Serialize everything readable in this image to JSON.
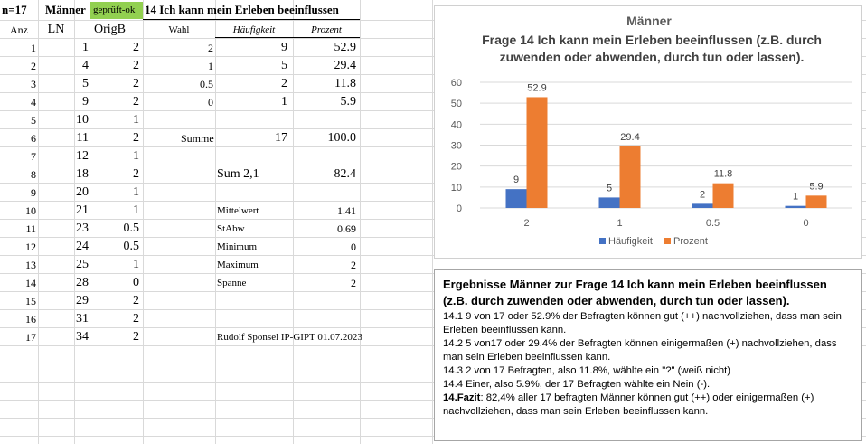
{
  "sheet": {
    "row1": {
      "n": "n=17",
      "maenner": "Männer",
      "gepr": "geprüft-ok",
      "title": "14 Ich kann mein Erleben beeinflussen"
    },
    "headers": {
      "anz": "Anz",
      "ln": "LN",
      "origb": "OrigB",
      "wahl": "Wahl",
      "haeuf": "Häufigkeit",
      "proz": "Prozent"
    },
    "rows": [
      {
        "anz": "1",
        "ln": "1",
        "origb": "2"
      },
      {
        "anz": "2",
        "ln": "4",
        "origb": "2"
      },
      {
        "anz": "3",
        "ln": "5",
        "origb": "2"
      },
      {
        "anz": "4",
        "ln": "9",
        "origb": "2"
      },
      {
        "anz": "5",
        "ln": "10",
        "origb": "1"
      },
      {
        "anz": "6",
        "ln": "11",
        "origb": "2"
      },
      {
        "anz": "7",
        "ln": "12",
        "origb": "1"
      },
      {
        "anz": "8",
        "ln": "18",
        "origb": "2"
      },
      {
        "anz": "9",
        "ln": "20",
        "origb": "1"
      },
      {
        "anz": "10",
        "ln": "21",
        "origb": "1"
      },
      {
        "anz": "11",
        "ln": "23",
        "origb": "0.5"
      },
      {
        "anz": "12",
        "ln": "24",
        "origb": "0.5"
      },
      {
        "anz": "13",
        "ln": "25",
        "origb": "1"
      },
      {
        "anz": "14",
        "ln": "28",
        "origb": "0"
      },
      {
        "anz": "15",
        "ln": "29",
        "origb": "2"
      },
      {
        "anz": "16",
        "ln": "31",
        "origb": "2"
      },
      {
        "anz": "17",
        "ln": "34",
        "origb": "2"
      }
    ],
    "freq": [
      {
        "wahl": "2",
        "h": "9",
        "p": "52.9"
      },
      {
        "wahl": "1",
        "h": "5",
        "p": "29.4"
      },
      {
        "wahl": "0.5",
        "h": "2",
        "p": "11.8"
      },
      {
        "wahl": "0",
        "h": "1",
        "p": "5.9"
      }
    ],
    "summe": {
      "label": "Summe",
      "h": "17",
      "p": "100.0"
    },
    "sum21": {
      "label": "Sum 2,1",
      "p": "82.4"
    },
    "stats": [
      {
        "label": "Mittelwert",
        "value": "1.41"
      },
      {
        "label": "StAbw",
        "value": "0.69"
      },
      {
        "label": "Minimum",
        "value": "0"
      },
      {
        "label": "Maximum",
        "value": "2"
      },
      {
        "label": "Spanne",
        "value": "2"
      }
    ],
    "credit": "Rudolf Sponsel IP-GIPT 01.07.2023"
  },
  "chart_data": {
    "type": "bar",
    "title": "Männer",
    "subtitle": "Frage 14 Ich kann mein Erleben beeinflussen (z.B. durch zuwenden oder abwenden, durch tun oder lassen).",
    "categories": [
      "2",
      "1",
      "0.5",
      "0"
    ],
    "series": [
      {
        "name": "Häufigkeit",
        "values": [
          9,
          5,
          2,
          1
        ],
        "color": "#4472c4"
      },
      {
        "name": "Prozent",
        "values": [
          52.9,
          29.4,
          11.8,
          5.9
        ],
        "color": "#ed7d31"
      }
    ],
    "data_labels": [
      [
        "9",
        "5",
        "2",
        "1"
      ],
      [
        "52.9",
        "29.4",
        "11.8",
        "5.9"
      ]
    ],
    "ylim": [
      0,
      60
    ],
    "yticks": [
      "0",
      "10",
      "20",
      "30",
      "40",
      "50",
      "60"
    ],
    "grid": true,
    "legend": "bottom",
    "xlabel": "",
    "ylabel": ""
  },
  "textbox": {
    "heading": "Ergebnisse Männer zur Frage 14 Ich kann mein Erleben beeinflussen (z.B. durch zuwenden oder abwenden, durch tun oder lassen).",
    "p1": "14.1   9 von 17 oder 52.9% der Befragten können gut (++) nachvollziehen, dass man sein Erleben beeinflussen kann.",
    "p2": "14.2   5 von17 oder 29.4% der Befragten können einigermaßen (+) nachvollziehen, dass man sein Erleben beeinflussen kann.",
    "p3": "14.3  2 von 17 Befragten, also 11.8%, wählte ein \"?\" (weiß nicht)",
    "p4": "14.4  Einer, also 5.9%, der 17 Befragten wählte ein Nein (-).",
    "fazit_label": "14.Fazit",
    "fazit_text": ": 82,4% aller 17 befragten Männer können gut (++) oder einigermaßen (+) nachvollziehen, dass man sein Erleben beeinflussen kann."
  }
}
